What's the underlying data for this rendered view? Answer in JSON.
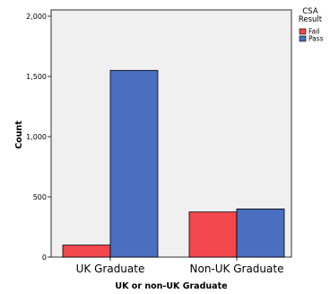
{
  "chart_data": {
    "type": "bar",
    "title": "",
    "xlabel": "UK or non-UK Graduate",
    "ylabel": "Count",
    "categories": [
      "UK Graduate",
      "Non-UK Graduate"
    ],
    "series": [
      {
        "name": "Fail",
        "values": [
          100,
          375
        ],
        "color": "#f2474c"
      },
      {
        "name": "Pass",
        "values": [
          1550,
          400
        ],
        "color": "#4a6fc0"
      }
    ],
    "ylim": [
      0,
      2000
    ],
    "yticks": [
      0,
      500,
      1000,
      1500,
      2000
    ],
    "ytick_labels": [
      "0",
      "500",
      "1,000",
      "1,500",
      "2,000"
    ],
    "grid": false,
    "legend": {
      "title_lines": [
        "CSA",
        "Result"
      ],
      "position": "top-right"
    },
    "plot_background": "#f0f0f0"
  }
}
